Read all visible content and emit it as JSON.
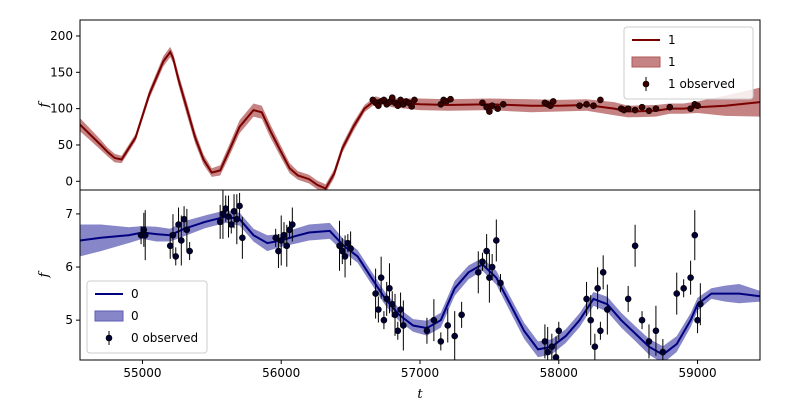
{
  "chart_data": [
    {
      "type": "line",
      "panel": "top",
      "xlabel": "",
      "ylabel": "f",
      "xlim": [
        54550,
        59450
      ],
      "ylim": [
        -12,
        222
      ],
      "yticks": [
        0,
        50,
        100,
        150,
        200
      ],
      "legend_position": "upper right",
      "colors": {
        "line": "#7a0000",
        "band": "#b25a5a",
        "marker": "#3a0000"
      },
      "legend": [
        {
          "kind": "line",
          "label": "1"
        },
        {
          "kind": "band",
          "label": "1"
        },
        {
          "kind": "marker",
          "label": "1 observed"
        }
      ],
      "series": [
        {
          "name": "1",
          "x": [
            54550,
            54620,
            54700,
            54750,
            54800,
            54850,
            54950,
            55050,
            55150,
            55200,
            55220,
            55260,
            55320,
            55380,
            55440,
            55500,
            55560,
            55620,
            55700,
            55800,
            55860,
            55920,
            56000,
            56060,
            56120,
            56200,
            56260,
            56320,
            56380,
            56440,
            56520,
            56600,
            56680,
            56730,
            56800,
            57000,
            57200,
            57500,
            57800,
            58000,
            58200,
            58400,
            58500,
            58700,
            58800,
            58900,
            59000,
            59200,
            59450
          ],
          "y": [
            78,
            65,
            50,
            40,
            32,
            30,
            60,
            120,
            165,
            178,
            170,
            140,
            100,
            60,
            30,
            12,
            15,
            40,
            75,
            98,
            95,
            70,
            40,
            18,
            8,
            3,
            -5,
            -10,
            10,
            45,
            75,
            100,
            112,
            110,
            108,
            106,
            105,
            106,
            104,
            104,
            105,
            100,
            96,
            97,
            100,
            100,
            102,
            104,
            109
          ],
          "band_width": [
            9,
            8,
            7,
            6,
            6,
            5,
            5,
            6,
            7,
            7,
            7,
            8,
            9,
            8,
            7,
            6,
            7,
            8,
            9,
            9,
            9,
            9,
            8,
            7,
            6,
            6,
            6,
            6,
            6,
            6,
            6,
            5,
            5,
            4,
            6,
            8,
            8,
            8,
            9,
            8,
            8,
            9,
            8,
            8,
            7,
            7,
            8,
            14,
            20
          ]
        }
      ],
      "observed": {
        "x": [
          56660,
          56680,
          56700,
          56720,
          56740,
          56760,
          56780,
          56800,
          56820,
          56840,
          56860,
          56880,
          56900,
          56920,
          56940,
          56960,
          57150,
          57170,
          57190,
          57220,
          57450,
          57480,
          57500,
          57520,
          57560,
          57600,
          57900,
          57920,
          57940,
          57960,
          58150,
          58200,
          58250,
          58300,
          58450,
          58470,
          58500,
          58550,
          58600,
          58650,
          58700,
          58800,
          58950,
          58980,
          59000
        ],
        "y": [
          112,
          108,
          104,
          110,
          112,
          106,
          109,
          115,
          108,
          104,
          112,
          106,
          110,
          108,
          103,
          112,
          106,
          112,
          110,
          113,
          108,
          102,
          96,
          104,
          100,
          106,
          108,
          106,
          104,
          110,
          104,
          106,
          104,
          112,
          100,
          98,
          100,
          98,
          102,
          97,
          100,
          102,
          100,
          106,
          104
        ]
      }
    },
    {
      "type": "line",
      "panel": "bottom",
      "xlabel": "t",
      "ylabel": "f",
      "xlim": [
        54550,
        59450
      ],
      "ylim": [
        4.25,
        7.45
      ],
      "xticks": [
        55000,
        56000,
        57000,
        58000,
        59000
      ],
      "yticks": [
        5,
        6,
        7
      ],
      "legend_position": "lower left",
      "colors": {
        "line": "#000080",
        "band": "#5e5eb5",
        "marker": "#000033"
      },
      "legend": [
        {
          "kind": "line",
          "label": "0"
        },
        {
          "kind": "band",
          "label": "0"
        },
        {
          "kind": "marker",
          "label": "0 observed"
        }
      ],
      "series": [
        {
          "name": "0",
          "x": [
            54550,
            54700,
            54900,
            55000,
            55100,
            55200,
            55300,
            55450,
            55600,
            55700,
            55800,
            55900,
            56000,
            56100,
            56200,
            56350,
            56450,
            56550,
            56650,
            56750,
            56850,
            56950,
            57050,
            57150,
            57250,
            57350,
            57450,
            57550,
            57650,
            57750,
            57850,
            57950,
            58050,
            58150,
            58250,
            58350,
            58450,
            58550,
            58650,
            58750,
            58850,
            58950,
            59000,
            59100,
            59200,
            59300,
            59450
          ],
          "y": [
            6.5,
            6.55,
            6.6,
            6.65,
            6.62,
            6.6,
            6.72,
            6.85,
            6.95,
            6.9,
            6.6,
            6.45,
            6.5,
            6.58,
            6.65,
            6.68,
            6.4,
            6.2,
            5.8,
            5.4,
            5.1,
            4.9,
            4.85,
            5.0,
            5.6,
            5.9,
            6.05,
            5.8,
            5.3,
            4.8,
            4.45,
            4.5,
            4.7,
            5.0,
            5.4,
            5.3,
            5.0,
            4.75,
            4.5,
            4.35,
            4.55,
            5.0,
            5.3,
            5.5,
            5.5,
            5.5,
            5.45
          ],
          "band_width": [
            0.3,
            0.25,
            0.15,
            0.12,
            0.14,
            0.12,
            0.14,
            0.12,
            0.12,
            0.12,
            0.12,
            0.15,
            0.12,
            0.14,
            0.15,
            0.15,
            0.12,
            0.12,
            0.12,
            0.12,
            0.12,
            0.12,
            0.14,
            0.14,
            0.14,
            0.13,
            0.12,
            0.13,
            0.14,
            0.15,
            0.15,
            0.14,
            0.13,
            0.13,
            0.13,
            0.14,
            0.14,
            0.14,
            0.15,
            0.16,
            0.15,
            0.13,
            0.12,
            0.1,
            0.15,
            0.18,
            0.1
          ]
        }
      ],
      "observed": {
        "x": [
          54990,
          55010,
          55020,
          55200,
          55220,
          55240,
          55260,
          55280,
          55300,
          55320,
          55340,
          55560,
          55580,
          55600,
          55620,
          55640,
          55660,
          55680,
          55700,
          55720,
          55960,
          55980,
          56000,
          56020,
          56040,
          56060,
          56080,
          56420,
          56440,
          56460,
          56480,
          56500,
          56680,
          56700,
          56720,
          56740,
          56760,
          56780,
          56800,
          56820,
          56840,
          56860,
          56880,
          57050,
          57100,
          57150,
          57200,
          57250,
          57300,
          57420,
          57450,
          57480,
          57500,
          57520,
          57550,
          57580,
          57900,
          57920,
          57950,
          57980,
          58000,
          58200,
          58230,
          58260,
          58280,
          58300,
          58320,
          58350,
          58500,
          58550,
          58600,
          58650,
          58700,
          58750,
          58850,
          58900,
          58950,
          58980,
          59000,
          59020
        ],
        "y": [
          6.6,
          6.7,
          6.6,
          6.4,
          6.6,
          6.2,
          6.8,
          6.5,
          6.9,
          6.7,
          6.3,
          6.85,
          7.0,
          7.1,
          6.95,
          6.8,
          7.05,
          6.9,
          7.15,
          6.55,
          6.55,
          6.3,
          6.5,
          6.6,
          6.4,
          6.7,
          6.8,
          6.4,
          6.3,
          6.2,
          6.45,
          6.35,
          5.5,
          5.2,
          5.8,
          5.0,
          5.4,
          5.6,
          5.3,
          5.1,
          4.8,
          5.2,
          4.9,
          4.8,
          5.0,
          4.6,
          4.9,
          4.7,
          5.1,
          5.9,
          6.1,
          6.3,
          5.8,
          6.0,
          6.5,
          5.7,
          4.6,
          4.4,
          4.5,
          4.3,
          4.8,
          5.4,
          5.0,
          4.5,
          5.6,
          4.8,
          5.9,
          5.2,
          5.4,
          6.4,
          5.0,
          4.6,
          4.8,
          4.4,
          5.5,
          5.6,
          5.8,
          6.6,
          5.0,
          5.3
        ]
      }
    }
  ]
}
